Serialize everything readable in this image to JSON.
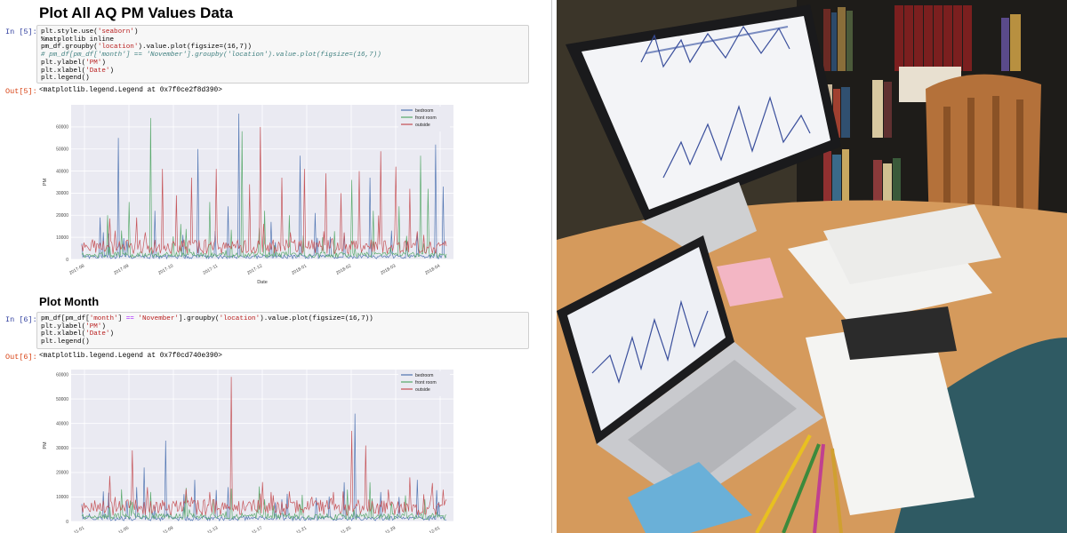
{
  "notebook": {
    "section1_title": "Plot All AQ PM Values Data",
    "cell5": {
      "in_prompt": "In [5]:",
      "out_prompt": "Out[5]:",
      "code": [
        [
          [
            "plt.style.use(",
            ""
          ],
          [
            "'seaborn'",
            "str"
          ],
          [
            ")",
            ""
          ]
        ],
        [
          [
            "%matplotlib inline",
            ""
          ]
        ],
        [
          [
            "pm_df.groupby(",
            ""
          ],
          [
            "'location'",
            "str"
          ],
          [
            ").value.plot(figsize=(16,7))",
            ""
          ]
        ],
        [
          [
            "# pm_df[pm_df['month'] == 'November'].groupby('location').value.plot(figsize=(16,7))",
            "cm"
          ]
        ],
        [
          [
            "plt.ylabel(",
            ""
          ],
          [
            "'PM'",
            "str"
          ],
          [
            ")",
            ""
          ]
        ],
        [
          [
            "plt.xlabel(",
            ""
          ],
          [
            "'Date'",
            "str"
          ],
          [
            ")",
            ""
          ]
        ],
        [
          [
            "plt.legend()",
            ""
          ]
        ]
      ],
      "output": "<matplotlib.legend.Legend at 0x7f0ce2f8d390>"
    },
    "section2_title": "Plot Month",
    "cell6": {
      "in_prompt": "In [6]:",
      "out_prompt": "Out[6]:",
      "code": [
        [
          [
            "pm_df[pm_df[",
            ""
          ],
          [
            "'month'",
            "str"
          ],
          [
            "] ",
            ""
          ],
          [
            "==",
            "op"
          ],
          [
            " ",
            ""
          ],
          [
            "'November'",
            "str"
          ],
          [
            "].groupby(",
            ""
          ],
          [
            "'location'",
            "str"
          ],
          [
            ").value.plot(figsize=(16,7))",
            ""
          ]
        ],
        [
          [
            "plt.ylabel(",
            ""
          ],
          [
            "'PM'",
            "str"
          ],
          [
            ")",
            ""
          ]
        ],
        [
          [
            "plt.xlabel(",
            ""
          ],
          [
            "'Date'",
            "str"
          ],
          [
            ")",
            ""
          ]
        ],
        [
          [
            "plt.legend()",
            ""
          ]
        ]
      ],
      "output": "<matplotlib.legend.Legend at 0x7f0cd740e390>"
    }
  },
  "chart_data": [
    {
      "type": "line",
      "ylabel": "PM",
      "xlabel": "Date",
      "ylim": [
        0,
        70000
      ],
      "yticks": [
        0,
        10000,
        20000,
        30000,
        40000,
        50000,
        60000
      ],
      "xtick_labels": [
        "2017-08",
        "2017-09",
        "2017-10",
        "2017-11",
        "2017-12",
        "2018-01",
        "2018-02",
        "2018-03",
        "2018-04"
      ],
      "legend_position": "top-right",
      "grid": true,
      "series": [
        {
          "name": "bedroom",
          "color": "#4c72b0",
          "spikes": [
            [
              0.05,
              19000
            ],
            [
              0.1,
              55000
            ],
            [
              0.2,
              22000
            ],
            [
              0.32,
              50000
            ],
            [
              0.4,
              24000
            ],
            [
              0.43,
              66000
            ],
            [
              0.52,
              17000
            ],
            [
              0.6,
              47000
            ],
            [
              0.64,
              21000
            ],
            [
              0.72,
              12000
            ],
            [
              0.79,
              37000
            ],
            [
              0.85,
              13000
            ],
            [
              0.89,
              9000
            ],
            [
              0.92,
              12000
            ],
            [
              0.97,
              52000
            ],
            [
              0.99,
              33000
            ]
          ]
        },
        {
          "name": "front room",
          "color": "#55a868",
          "spikes": [
            [
              0.07,
              20000
            ],
            [
              0.13,
              26000
            ],
            [
              0.19,
              64000
            ],
            [
              0.27,
              16000
            ],
            [
              0.35,
              26000
            ],
            [
              0.44,
              58000
            ],
            [
              0.5,
              22000
            ],
            [
              0.57,
              20000
            ],
            [
              0.66,
              10000
            ],
            [
              0.74,
              36000
            ],
            [
              0.8,
              22000
            ],
            [
              0.87,
              24000
            ],
            [
              0.93,
              47000
            ],
            [
              0.95,
              32000
            ]
          ]
        },
        {
          "name": "outside",
          "color": "#c44e52",
          "spikes": [
            [
              0.03,
              9000
            ],
            [
              0.09,
              13000
            ],
            [
              0.15,
              19000
            ],
            [
              0.22,
              41000
            ],
            [
              0.26,
              29000
            ],
            [
              0.3,
              37000
            ],
            [
              0.37,
              41000
            ],
            [
              0.46,
              34000
            ],
            [
              0.49,
              60000
            ],
            [
              0.55,
              37000
            ],
            [
              0.61,
              41000
            ],
            [
              0.67,
              39000
            ],
            [
              0.71,
              30000
            ],
            [
              0.76,
              40000
            ],
            [
              0.82,
              49000
            ],
            [
              0.86,
              42000
            ],
            [
              0.9,
              32000
            ]
          ]
        }
      ]
    },
    {
      "type": "line",
      "ylabel": "PM",
      "xlabel": "",
      "ylim": [
        0,
        62000
      ],
      "yticks": [
        0,
        10000,
        20000,
        30000,
        40000,
        50000,
        60000
      ],
      "xtick_labels": [
        "11-01",
        "11-05",
        "11-09",
        "11-13",
        "11-17",
        "11-21",
        "11-25",
        "11-29",
        "12-01"
      ],
      "legend_position": "top-right",
      "grid": true,
      "series": [
        {
          "name": "bedroom",
          "color": "#4c72b0",
          "spikes": [
            [
              0.02,
              3000
            ],
            [
              0.15,
              14000
            ],
            [
              0.17,
              22000
            ],
            [
              0.2,
              6000
            ],
            [
              0.23,
              33000
            ],
            [
              0.31,
              17000
            ],
            [
              0.4,
              14000
            ],
            [
              0.55,
              9000
            ],
            [
              0.72,
              16000
            ],
            [
              0.75,
              44000
            ],
            [
              0.82,
              12000
            ],
            [
              0.87,
              10000
            ],
            [
              0.92,
              17000
            ],
            [
              0.98,
              8000
            ]
          ]
        },
        {
          "name": "front room",
          "color": "#55a868",
          "spikes": [
            [
              0.05,
              4000
            ],
            [
              0.14,
              8000
            ],
            [
              0.19,
              12000
            ],
            [
              0.28,
              6000
            ],
            [
              0.36,
              9000
            ],
            [
              0.48,
              5000
            ],
            [
              0.6,
              7000
            ],
            [
              0.73,
              13000
            ],
            [
              0.79,
              16000
            ],
            [
              0.85,
              8000
            ],
            [
              0.94,
              9000
            ]
          ]
        },
        {
          "name": "outside",
          "color": "#c44e52",
          "spikes": [
            [
              0.04,
              4000
            ],
            [
              0.09,
              10000
            ],
            [
              0.14,
              29000
            ],
            [
              0.18,
              14000
            ],
            [
              0.24,
              7000
            ],
            [
              0.3,
              10000
            ],
            [
              0.35,
              12000
            ],
            [
              0.41,
              59000
            ],
            [
              0.46,
              8000
            ],
            [
              0.52,
              12000
            ],
            [
              0.58,
              8000
            ],
            [
              0.63,
              10000
            ],
            [
              0.69,
              12000
            ],
            [
              0.74,
              37000
            ],
            [
              0.78,
              31000
            ],
            [
              0.84,
              13000
            ],
            [
              0.9,
              18000
            ],
            [
              0.96,
              11000
            ],
            [
              0.99,
              13000
            ]
          ]
        }
      ]
    }
  ],
  "photo": {
    "description_icon": "workspace-photo-icon"
  }
}
